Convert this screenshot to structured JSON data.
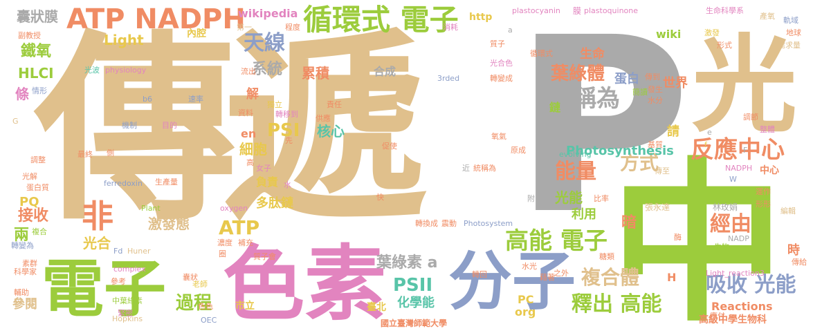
{
  "colors": {
    "tan": "#e0c08c",
    "gray": "#aaaaaa",
    "green": "#9ccc3c",
    "pink": "#e284bf",
    "blue": "#8c9ec8",
    "orange": "#f08c64",
    "teal": "#58c4a8",
    "yellow": "#e8c84c"
  },
  "words": [
    {
      "text": "傳遞"
    },
    {
      "text": "P"
    },
    {
      "text": "中"
    },
    {
      "text": "光"
    },
    {
      "text": "色素"
    },
    {
      "text": "分子"
    },
    {
      "text": "電子"
    },
    {
      "text": "ATP NADPH"
    },
    {
      "text": "循環式 電子"
    },
    {
      "text": "天線"
    },
    {
      "text": "系統"
    },
    {
      "text": "葉綠體"
    },
    {
      "text": "稱為"
    },
    {
      "text": "反應中心"
    },
    {
      "text": "能量"
    },
    {
      "text": "方式"
    },
    {
      "text": "高能 電子"
    },
    {
      "text": "經由"
    },
    {
      "text": "吸收 光能"
    },
    {
      "text": "釋出 高能"
    },
    {
      "text": "複合體"
    },
    {
      "text": "葉綠素 a"
    },
    {
      "text": "過程"
    },
    {
      "text": "非"
    },
    {
      "text": "PSI"
    },
    {
      "text": "PSII"
    },
    {
      "text": "ATP"
    },
    {
      "text": "囊狀膜"
    },
    {
      "text": "Photosynthesis"
    },
    {
      "text": "wikipedia"
    },
    {
      "text": "Light"
    },
    {
      "text": "HLCI"
    },
    {
      "text": "鐵氧"
    },
    {
      "text": "條"
    },
    {
      "text": "接收"
    },
    {
      "text": "兩"
    },
    {
      "text": "PQ"
    },
    {
      "text": "光合"
    },
    {
      "text": "細胞"
    },
    {
      "text": "負責"
    },
    {
      "text": "多肽鏈"
    },
    {
      "text": "激發態"
    },
    {
      "text": "光能"
    },
    {
      "text": "暗"
    },
    {
      "text": "利用"
    },
    {
      "text": "核心"
    },
    {
      "text": "累積"
    },
    {
      "text": "合成"
    },
    {
      "text": "世界"
    },
    {
      "text": "生命"
    },
    {
      "text": "蛋白"
    },
    {
      "text": "化學能"
    },
    {
      "text": "Reactions"
    },
    {
      "text": "高級中學生物科"
    },
    {
      "text": "國立臺灣師範大學"
    },
    {
      "text": "內腔"
    },
    {
      "text": "wiki"
    },
    {
      "text": "http"
    },
    {
      "text": "en"
    },
    {
      "text": "解"
    },
    {
      "text": "請"
    },
    {
      "text": "時"
    },
    {
      "text": "H"
    },
    {
      "text": "org"
    },
    {
      "text": "PC"
    },
    {
      "text": "市立"
    },
    {
      "text": "臺北"
    },
    {
      "text": "參閱"
    },
    {
      "text": "plastocyanin"
    },
    {
      "text": "plastoquinone"
    },
    {
      "text": "生命科學系"
    },
    {
      "text": "膜"
    },
    {
      "text": "physiology"
    },
    {
      "text": "ferredoxin"
    },
    {
      "text": "oxygen"
    },
    {
      "text": "evolving"
    },
    {
      "text": "complex"
    },
    {
      "text": "Hopkins"
    },
    {
      "text": "OEC"
    },
    {
      "text": "Huner"
    },
    {
      "text": "Fd"
    },
    {
      "text": "Plant"
    },
    {
      "text": "Photosystem"
    },
    {
      "text": "Light_reaction3"
    },
    {
      "text": "NADPH"
    },
    {
      "text": "NADP"
    },
    {
      "text": "b6"
    },
    {
      "text": "3rded"
    },
    {
      "text": "林玫娟"
    },
    {
      "text": "張永達"
    },
    {
      "text": "中心"
    },
    {
      "text": "副教授"
    },
    {
      "text": "光波"
    },
    {
      "text": "情形"
    },
    {
      "text": "光解"
    },
    {
      "text": "蛋白質"
    },
    {
      "text": "調整"
    },
    {
      "text": "科學家"
    },
    {
      "text": "素群"
    },
    {
      "text": "輔助"
    },
    {
      "text": "轉變為"
    },
    {
      "text": "複合"
    },
    {
      "text": "機制"
    },
    {
      "text": "目的"
    },
    {
      "text": "速率"
    },
    {
      "text": "最終"
    },
    {
      "text": "生產量"
    },
    {
      "text": "女子"
    },
    {
      "text": "流出"
    },
    {
      "text": "資料"
    },
    {
      "text": "獨立"
    },
    {
      "text": "轉移到"
    },
    {
      "text": "供應"
    },
    {
      "text": "責任"
    },
    {
      "text": "促使"
    },
    {
      "text": "統稱為"
    },
    {
      "text": "轉換成"
    },
    {
      "text": "震動"
    },
    {
      "text": "質子會"
    },
    {
      "text": "補充"
    },
    {
      "text": "濃度"
    },
    {
      "text": "老師"
    },
    {
      "text": "參考"
    },
    {
      "text": "色色"
    },
    {
      "text": "中葉綠素"
    },
    {
      "text": "緊密"
    },
    {
      "text": "轉回"
    },
    {
      "text": "藉著"
    },
    {
      "text": "水光"
    },
    {
      "text": "之外"
    },
    {
      "text": "糖類"
    },
    {
      "text": "傳給"
    },
    {
      "text": "應付"
    },
    {
      "text": "生物"
    },
    {
      "text": "酶"
    },
    {
      "text": "形形"
    },
    {
      "text": "運作"
    },
    {
      "text": "編輯"
    },
    {
      "text": "傳至"
    },
    {
      "text": "基質"
    },
    {
      "text": "氧氣"
    },
    {
      "text": "原成"
    },
    {
      "text": "比率"
    },
    {
      "text": "轉變成"
    },
    {
      "text": "光合色"
    },
    {
      "text": "循環式"
    },
    {
      "text": "滋養"
    },
    {
      "text": "傳到"
    },
    {
      "text": "發生"
    },
    {
      "text": "水分"
    },
    {
      "text": "簡讀"
    },
    {
      "text": "調節"
    },
    {
      "text": "整體"
    },
    {
      "text": "激發"
    },
    {
      "text": "形式"
    },
    {
      "text": "地球"
    },
    {
      "text": "需求量"
    },
    {
      "text": "產氧"
    },
    {
      "text": "軌域"
    },
    {
      "text": "消耗"
    },
    {
      "text": "程度"
    },
    {
      "text": "第一"
    },
    {
      "text": "質子"
    },
    {
      "text": "鏈"
    },
    {
      "text": "近"
    },
    {
      "text": "附"
    },
    {
      "text": "快"
    },
    {
      "text": "水"
    },
    {
      "text": "高"
    },
    {
      "text": "先"
    },
    {
      "text": "側"
    },
    {
      "text": "圈"
    },
    {
      "text": "囊狀"
    },
    {
      "text": "G"
    },
    {
      "text": "W"
    },
    {
      "text": "a"
    },
    {
      "text": "e"
    },
    {
      "text": "f"
    },
    {
      "text": "F"
    }
  ]
}
